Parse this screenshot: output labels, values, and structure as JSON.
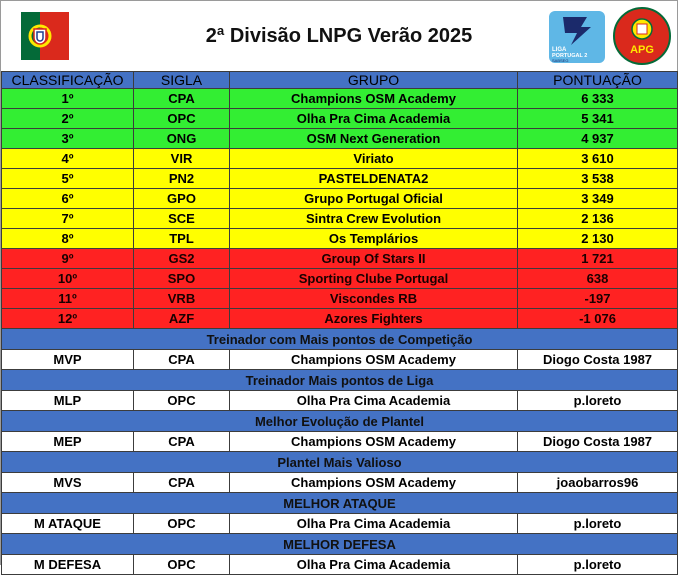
{
  "title": "2ª Divisão LNPG Verão 2025",
  "logos": {
    "liga_line1": "LIGA",
    "liga_line2": "PORTUGAL 2",
    "liga_line3": "SABSEG",
    "apg": "APG"
  },
  "colors": {
    "header_blue": "#4472c4",
    "green": "#33ee33",
    "yellow": "#ffff00",
    "red": "#ff2222"
  },
  "columns": [
    "CLASSIFICAÇÃO",
    "SIGLA",
    "GRUPO",
    "PONTUAÇÃO"
  ],
  "standings": [
    {
      "pos": "1º",
      "sigla": "CPA",
      "grupo": "Champions OSM Academy",
      "pontos": "6 333",
      "zone": "green"
    },
    {
      "pos": "2º",
      "sigla": "OPC",
      "grupo": "Olha Pra Cima Academia",
      "pontos": "5 341",
      "zone": "green"
    },
    {
      "pos": "3º",
      "sigla": "ONG",
      "grupo": "OSM Next Generation",
      "pontos": "4 937",
      "zone": "green"
    },
    {
      "pos": "4º",
      "sigla": "VIR",
      "grupo": "Viriato",
      "pontos": "3 610",
      "zone": "yellow"
    },
    {
      "pos": "5º",
      "sigla": "PN2",
      "grupo": "PASTELDENATA2",
      "pontos": "3 538",
      "zone": "yellow"
    },
    {
      "pos": "6º",
      "sigla": "GPO",
      "grupo": "Grupo Portugal Oficial",
      "pontos": "3 349",
      "zone": "yellow"
    },
    {
      "pos": "7º",
      "sigla": "SCE",
      "grupo": "Sintra Crew Evolution",
      "pontos": "2 136",
      "zone": "yellow"
    },
    {
      "pos": "8º",
      "sigla": "TPL",
      "grupo": "Os Templários",
      "pontos": "2 130",
      "zone": "yellow"
    },
    {
      "pos": "9º",
      "sigla": "GS2",
      "grupo": "Group Of Stars II",
      "pontos": "1 721",
      "zone": "red"
    },
    {
      "pos": "10º",
      "sigla": "SPO",
      "grupo": "Sporting Clube Portugal",
      "pontos": "638",
      "zone": "red"
    },
    {
      "pos": "11º",
      "sigla": "VRB",
      "grupo": "Viscondes RB",
      "pontos": "-197",
      "zone": "red"
    },
    {
      "pos": "12º",
      "sigla": "AZF",
      "grupo": "Azores Fighters",
      "pontos": "-1 076",
      "zone": "red"
    }
  ],
  "awards": [
    {
      "section": "Treinador com Mais pontos de Competição",
      "code": "MVP",
      "sigla": "CPA",
      "grupo": "Champions OSM Academy",
      "winner": "Diogo Costa 1987"
    },
    {
      "section": "Treinador Mais pontos de Liga",
      "code": "MLP",
      "sigla": "OPC",
      "grupo": "Olha Pra Cima Academia",
      "winner": "p.loreto"
    },
    {
      "section": "Melhor Evolução de Plantel",
      "code": "MEP",
      "sigla": "CPA",
      "grupo": "Champions OSM Academy",
      "winner": "Diogo Costa 1987"
    },
    {
      "section": "Plantel Mais Valioso",
      "code": "MVS",
      "sigla": "CPA",
      "grupo": "Champions OSM Academy",
      "winner": "joaobarros96"
    },
    {
      "section": "MELHOR ATAQUE",
      "code": "M ATAQUE",
      "sigla": "OPC",
      "grupo": "Olha Pra Cima Academia",
      "winner": "p.loreto"
    },
    {
      "section": "MELHOR DEFESA",
      "code": "M DEFESA",
      "sigla": "OPC",
      "grupo": "Olha Pra Cima Academia",
      "winner": "p.loreto"
    }
  ]
}
